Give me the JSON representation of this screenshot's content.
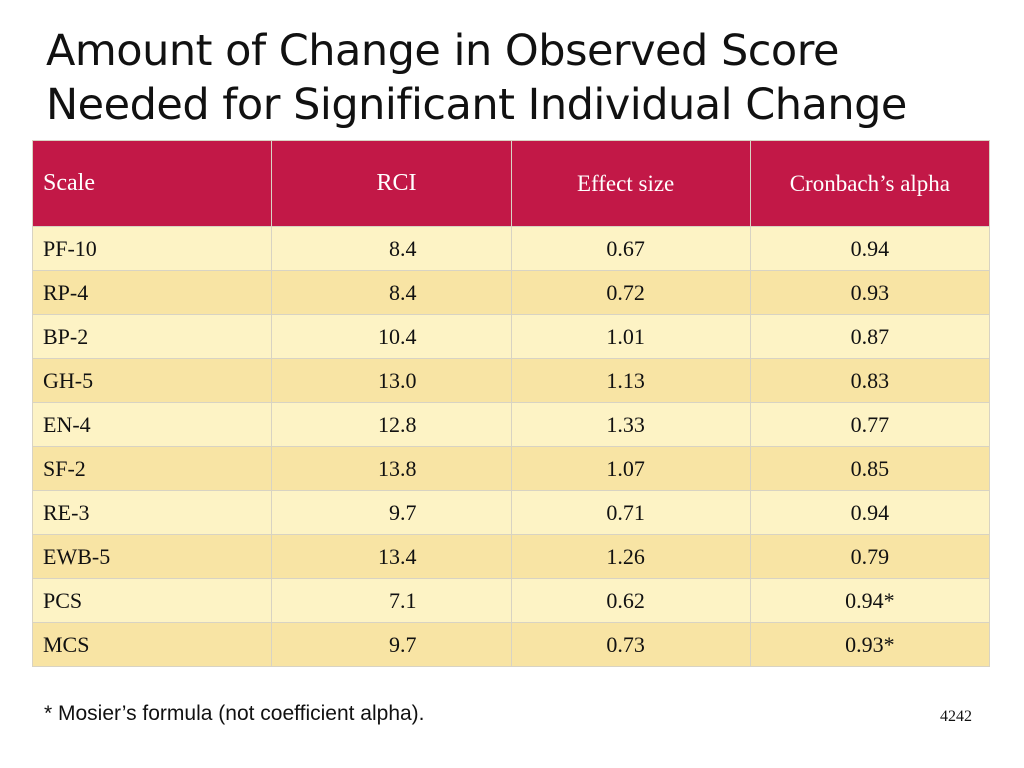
{
  "header": {
    "title_lines": [
      "Amount of Change in Observed Score",
      "Needed for Significant Individual Change"
    ]
  },
  "table": {
    "columns": [
      "Scale",
      "RCI",
      "Effect size",
      "Cronbach’s alpha"
    ],
    "rows": [
      [
        "PF-10",
        "8.4",
        "0.67",
        "0.94"
      ],
      [
        "RP-4",
        "8.4",
        "0.72",
        "0.93"
      ],
      [
        "BP-2",
        "10.4",
        "1.01",
        "0.87"
      ],
      [
        "GH-5",
        "13.0",
        "1.13",
        "0.83"
      ],
      [
        "EN-4",
        "12.8",
        "1.33",
        "0.77"
      ],
      [
        "SF-2",
        "13.8",
        "1.07",
        "0.85"
      ],
      [
        "RE-3",
        "9.7",
        "0.71",
        "0.94"
      ],
      [
        "EWB-5",
        "13.4",
        "1.26",
        "0.79"
      ],
      [
        "PCS",
        "7.1",
        "0.62",
        "0.94*"
      ],
      [
        "MCS",
        "9.7",
        "0.73",
        "0.93*"
      ]
    ]
  },
  "footnote": "* Mosier’s formula (not coefficient alpha).",
  "page_number": "4242"
}
